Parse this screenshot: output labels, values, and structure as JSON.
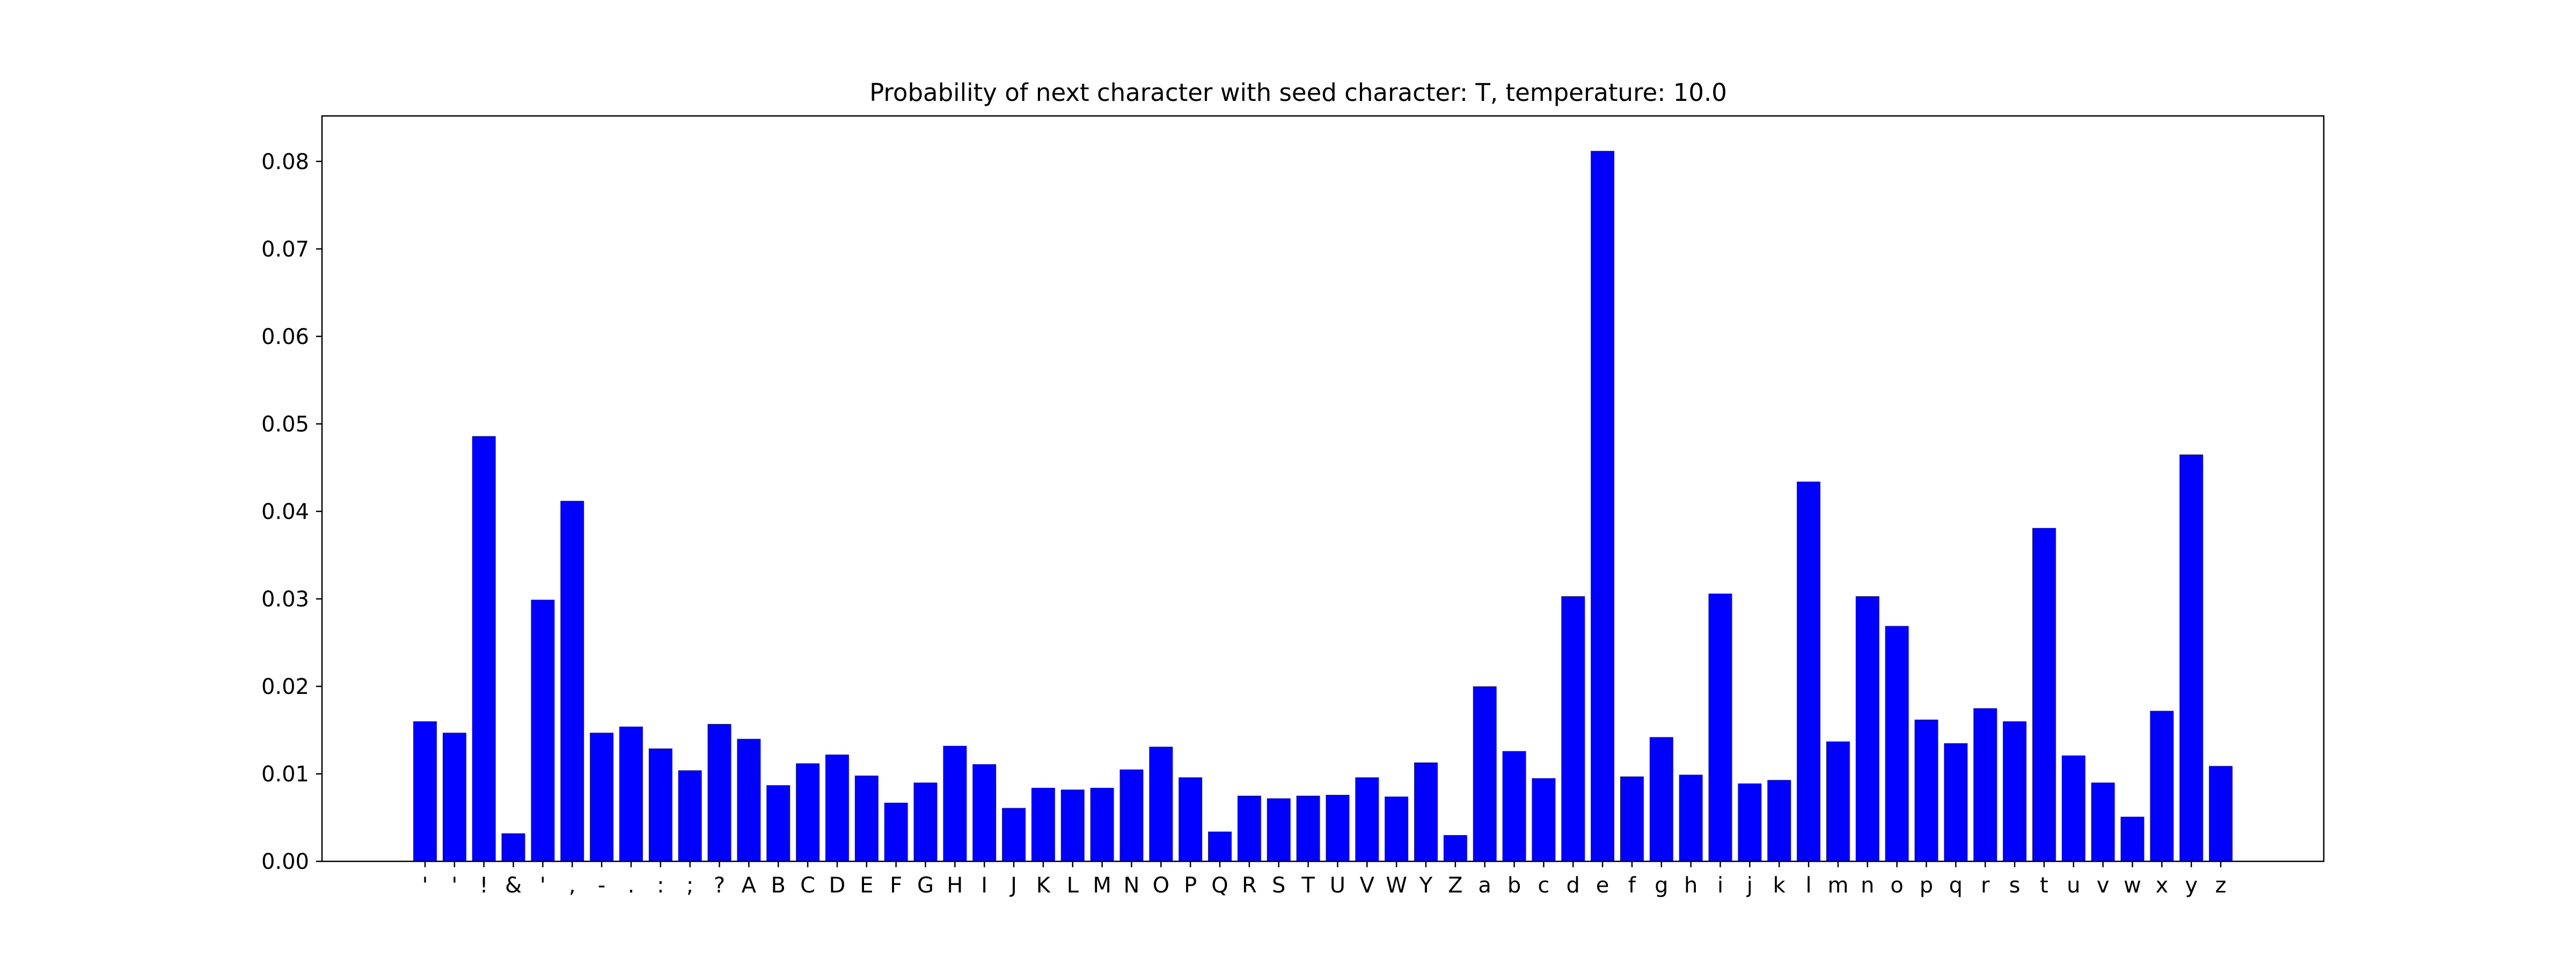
{
  "chart_data": {
    "type": "bar",
    "title": "Probability of next character with seed character: T, temperature: 10.0",
    "xlabel": "",
    "ylabel": "",
    "categories": [
      "\n",
      " ",
      "!",
      "&",
      "'",
      ",",
      "-",
      ".",
      ":",
      ";",
      "?",
      "A",
      "B",
      "C",
      "D",
      "E",
      "F",
      "G",
      "H",
      "I",
      "J",
      "K",
      "L",
      "M",
      "N",
      "O",
      "P",
      "Q",
      "R",
      "S",
      "T",
      "U",
      "V",
      "W",
      "Y",
      "Z",
      "a",
      "b",
      "c",
      "d",
      "e",
      "f",
      "g",
      "h",
      "i",
      "j",
      "k",
      "l",
      "m",
      "n",
      "o",
      "p",
      "q",
      "r",
      "s",
      "t",
      "u",
      "v",
      "w",
      "x",
      "y",
      "z"
    ],
    "tick_labels": [
      "'",
      "'",
      "!",
      "&",
      "'",
      ",",
      "-",
      ".",
      ":",
      ";",
      "?",
      "A",
      "B",
      "C",
      "D",
      "E",
      "F",
      "G",
      "H",
      "I",
      "J",
      "K",
      "L",
      "M",
      "N",
      "O",
      "P",
      "Q",
      "R",
      "S",
      "T",
      "U",
      "V",
      "W",
      "Y",
      "Z",
      "a",
      "b",
      "c",
      "d",
      "e",
      "f",
      "g",
      "h",
      "i",
      "j",
      "k",
      "l",
      "m",
      "n",
      "o",
      "p",
      "q",
      "r",
      "s",
      "t",
      "u",
      "v",
      "w",
      "x",
      "y",
      "z"
    ],
    "values": [
      0.016,
      0.0147,
      0.0486,
      0.0032,
      0.0299,
      0.0412,
      0.0147,
      0.0154,
      0.0129,
      0.0104,
      0.0157,
      0.014,
      0.0087,
      0.0112,
      0.0122,
      0.0098,
      0.0067,
      0.009,
      0.0132,
      0.0111,
      0.0061,
      0.0084,
      0.0082,
      0.0084,
      0.0105,
      0.0131,
      0.0096,
      0.0034,
      0.0075,
      0.0072,
      0.0075,
      0.0076,
      0.0096,
      0.0074,
      0.0113,
      0.003,
      0.02,
      0.0126,
      0.0095,
      0.0303,
      0.0812,
      0.0097,
      0.0142,
      0.0099,
      0.0306,
      0.0089,
      0.0093,
      0.0434,
      0.0137,
      0.0303,
      0.0269,
      0.0162,
      0.0135,
      0.0175,
      0.016,
      0.0381,
      0.0121,
      0.009,
      0.0051,
      0.0172,
      0.0465,
      0.0109
    ],
    "ylim": [
      0,
      0.0852
    ],
    "yticks": [
      "0.00",
      "0.01",
      "0.02",
      "0.03",
      "0.04",
      "0.05",
      "0.06",
      "0.07",
      "0.08"
    ],
    "bar_color": "#0000ff",
    "grid": false
  }
}
